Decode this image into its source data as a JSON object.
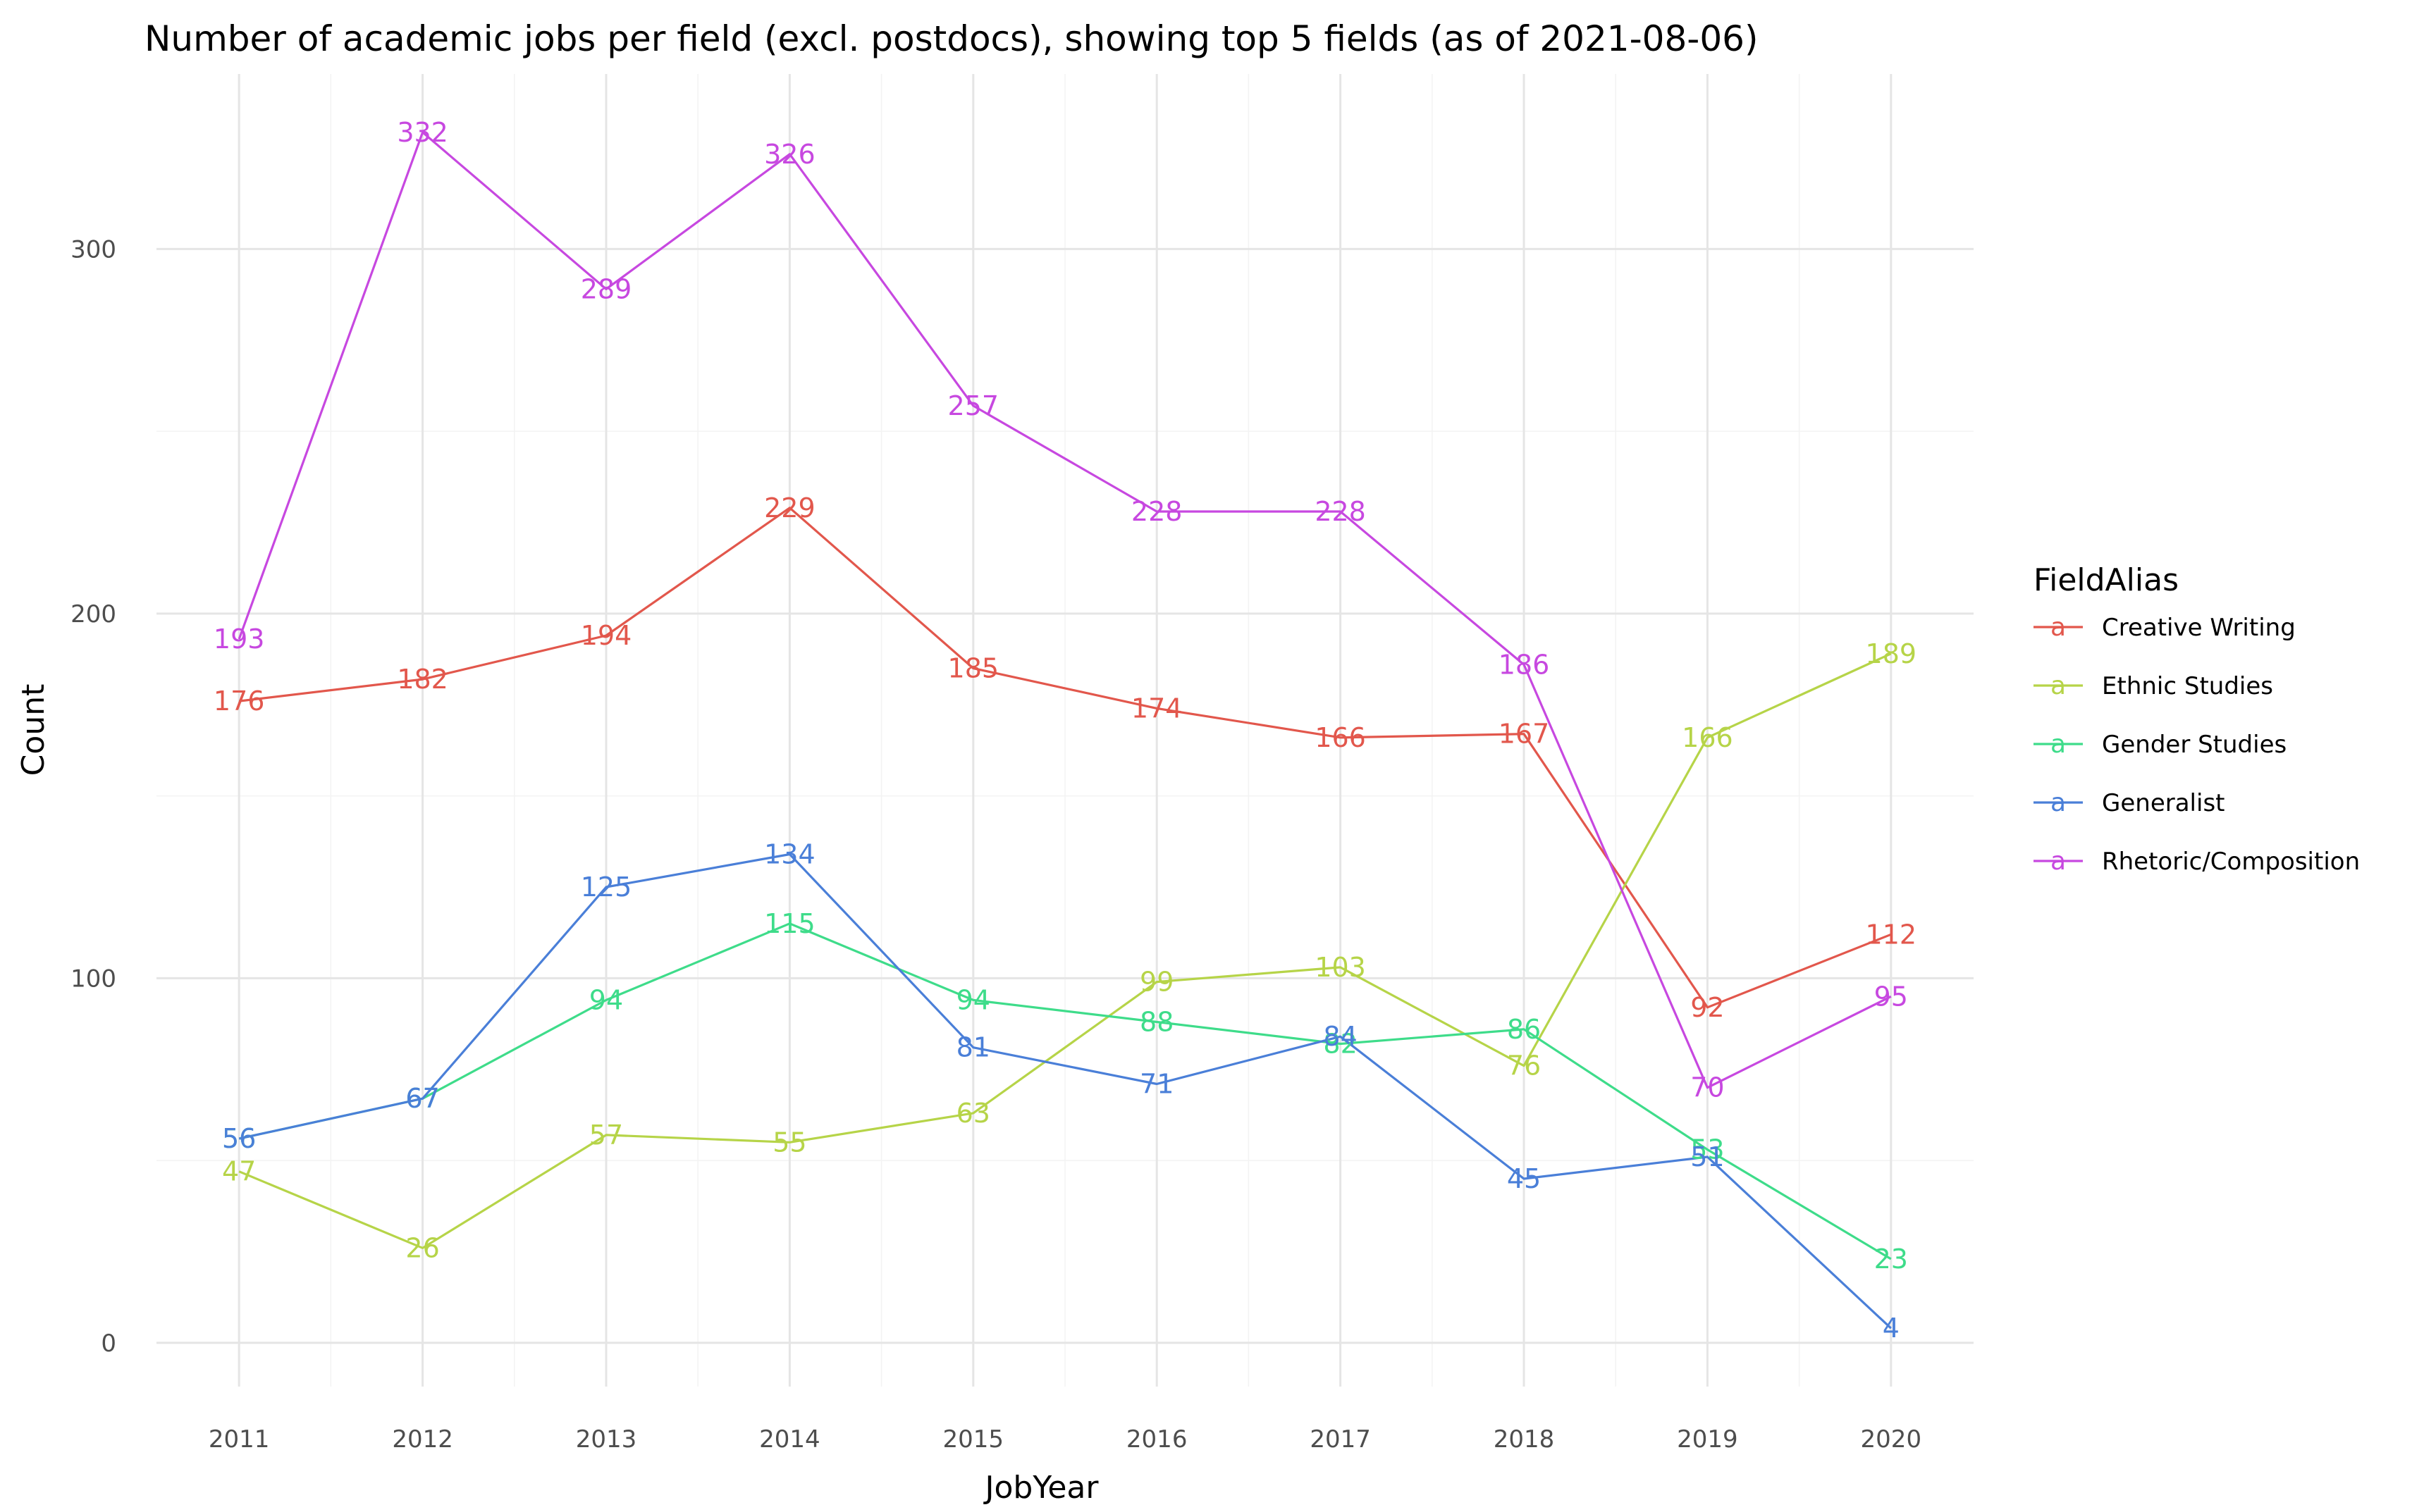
{
  "chart_data": {
    "type": "line",
    "title": "Number of academic jobs per field (excl. postdocs), showing top 5 fields (as of 2021-08-06)",
    "xlabel": "JobYear",
    "ylabel": "Count",
    "x": [
      2011,
      2012,
      2013,
      2014,
      2015,
      2016,
      2017,
      2018,
      2019,
      2020
    ],
    "x_tick_labels": [
      "2011",
      "2012",
      "2013",
      "2014",
      "2015",
      "2016",
      "2017",
      "2018",
      "2019",
      "2020"
    ],
    "y_ticks": [
      0,
      100,
      200,
      300
    ],
    "y_tick_labels": [
      "0",
      "100",
      "200",
      "300"
    ],
    "xlim": [
      2010.55,
      2020.45
    ],
    "ylim": [
      -12,
      348
    ],
    "grid": true,
    "legend": {
      "title": "FieldAlias",
      "placement": "right",
      "glyph": "a"
    },
    "series": [
      {
        "name": "Creative Writing",
        "color": "#e2574c",
        "values": [
          176,
          182,
          194,
          229,
          185,
          174,
          166,
          167,
          92,
          112
        ]
      },
      {
        "name": "Ethnic Studies",
        "color": "#b6d448",
        "values": [
          47,
          26,
          57,
          55,
          63,
          99,
          103,
          76,
          166,
          189
        ]
      },
      {
        "name": "Gender Studies",
        "color": "#3edc8a",
        "values": [
          56,
          67,
          94,
          115,
          94,
          88,
          82,
          86,
          53,
          23
        ]
      },
      {
        "name": "Generalist",
        "color": "#4a7fd8",
        "values": [
          56,
          67,
          125,
          134,
          81,
          71,
          84,
          45,
          51,
          4
        ]
      },
      {
        "name": "Rhetoric/Composition",
        "color": "#c748e0",
        "values": [
          193,
          332,
          289,
          326,
          257,
          228,
          228,
          186,
          70,
          95
        ]
      }
    ]
  }
}
